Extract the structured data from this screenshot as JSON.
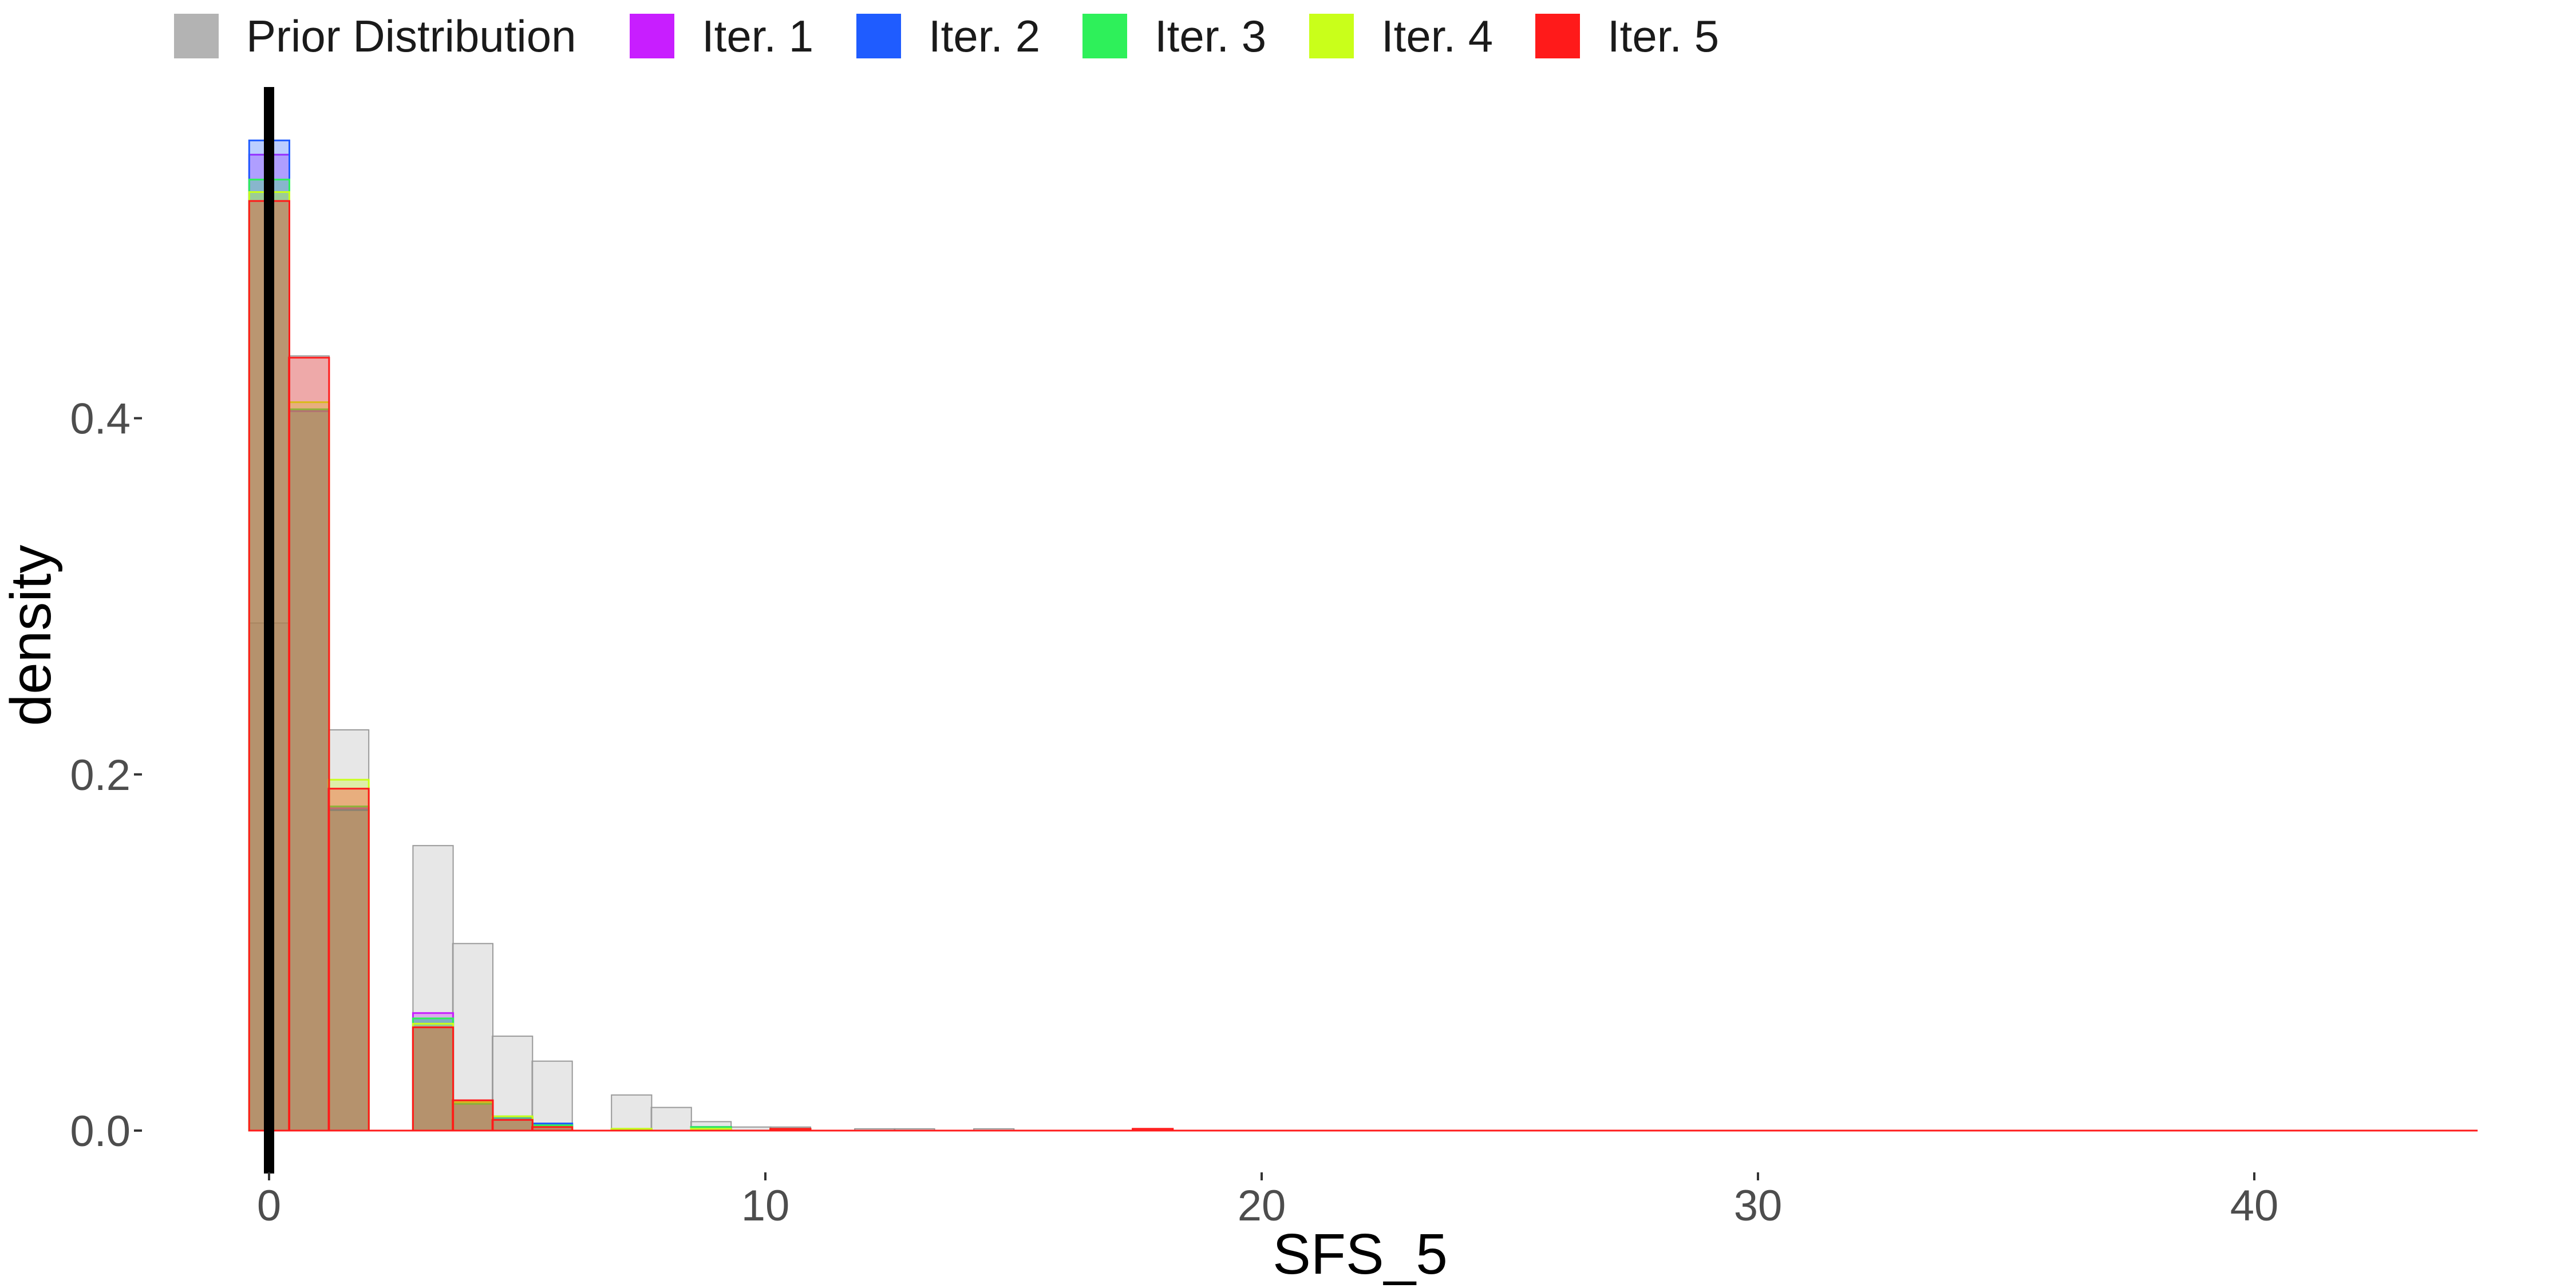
{
  "chart_data": {
    "type": "bar",
    "xlabel": "SFS_5",
    "ylabel": "density",
    "xlim": [
      -0.6,
      44.5
    ],
    "ylim": [
      0,
      0.6
    ],
    "x_ticks": [
      0,
      10,
      20,
      30,
      40
    ],
    "y_ticks": [
      0.0,
      0.2,
      0.4
    ],
    "x_tick_labels": [
      "0",
      "10",
      "20",
      "30",
      "40"
    ],
    "y_tick_labels": [
      "0.0",
      "0.2",
      "0.4"
    ],
    "grid": false,
    "legend_position": "top",
    "bin_width": 0.81,
    "reference_line": {
      "x": 0,
      "color": "#000000"
    },
    "bin_start": [
      -0.4,
      0.4,
      1.2,
      2.1,
      2.9,
      3.7,
      4.5,
      5.3,
      6.1,
      6.9,
      7.7,
      8.5,
      9.3,
      10.1,
      10.9,
      11.8,
      12.6,
      13.4,
      14.2,
      15.0,
      15.8,
      16.6,
      17.4
    ],
    "series": [
      {
        "name": "Prior Distribution",
        "color": "#b3b3b3",
        "values": [
          0.285,
          0.435,
          0.225,
          0,
          0.16,
          0.105,
          0.053,
          0.039,
          0,
          0.02,
          0.013,
          0.005,
          0.002,
          0.002,
          0,
          0.001,
          0.001,
          0,
          0.001,
          0,
          0,
          0,
          0
        ]
      },
      {
        "name": "Iter. 1",
        "color": "#c81eff",
        "values": [
          0.548,
          0.404,
          0.181,
          0,
          0.066,
          0.016,
          0.006,
          0.003,
          0,
          0,
          0,
          0.002,
          0,
          0.001,
          0,
          0,
          0,
          0,
          0,
          0,
          0,
          0,
          0
        ]
      },
      {
        "name": "Iter. 2",
        "color": "#1f5cff",
        "values": [
          0.556,
          0.405,
          0.18,
          0,
          0.063,
          0.015,
          0.007,
          0.004,
          0,
          0,
          0,
          0.002,
          0,
          0.001,
          0,
          0,
          0,
          0,
          0,
          0,
          0,
          0,
          0
        ]
      },
      {
        "name": "Iter. 3",
        "color": "#2ef05a",
        "values": [
          0.534,
          0.405,
          0.182,
          0,
          0.063,
          0.015,
          0.008,
          0.003,
          0,
          0.001,
          0,
          0.002,
          0,
          0.001,
          0,
          0,
          0,
          0,
          0,
          0,
          0,
          0,
          0
        ]
      },
      {
        "name": "Iter. 4",
        "color": "#c9ff1a",
        "values": [
          0.527,
          0.409,
          0.197,
          0,
          0.06,
          0.016,
          0.008,
          0.002,
          0,
          0.001,
          0,
          0.001,
          0,
          0.001,
          0,
          0,
          0,
          0,
          0,
          0,
          0,
          0,
          0
        ]
      },
      {
        "name": "Iter. 5",
        "color": "#ff1a1a",
        "values": [
          0.522,
          0.434,
          0.192,
          0,
          0.058,
          0.017,
          0.006,
          0.002,
          0,
          0,
          0,
          0,
          0,
          0.001,
          0,
          0,
          0,
          0,
          0,
          0,
          0,
          0,
          0.001
        ]
      }
    ]
  }
}
